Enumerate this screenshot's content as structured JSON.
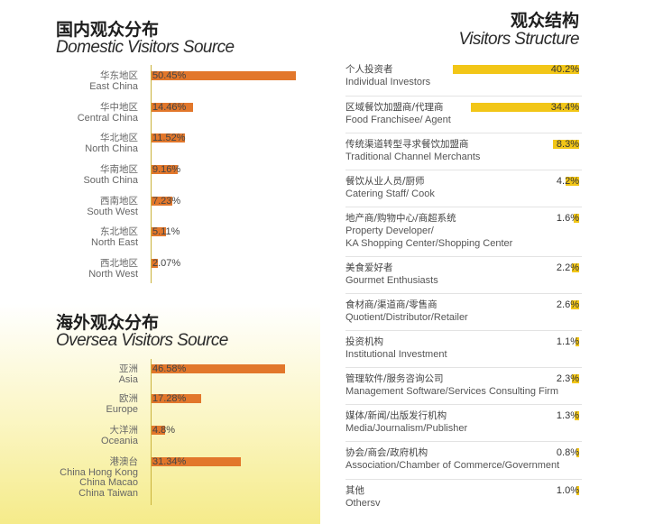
{
  "domestic": {
    "title_cn": "国内观众分布",
    "title_en": "Domestic Visitors Source"
  },
  "oversea": {
    "title_cn": "海外观众分布",
    "title_en": "Oversea Visitors Source"
  },
  "structure": {
    "title_cn": "观众结构",
    "title_en": "Visitors Structure"
  },
  "colors": {
    "orange_bar": "#e2772b",
    "yellow_bar": "#f2c617",
    "panel_gradient": "#f5eb8a"
  },
  "chart_data": [
    {
      "type": "bar",
      "title": "国内观众分布 Domestic Visitors Source",
      "orientation": "horizontal",
      "unit": "%",
      "categories": [
        {
          "cn": "华东地区",
          "en": "East China"
        },
        {
          "cn": "华中地区",
          "en": "Central China"
        },
        {
          "cn": "华北地区",
          "en": "North China"
        },
        {
          "cn": "华南地区",
          "en": "South China"
        },
        {
          "cn": "西南地区",
          "en": "South West"
        },
        {
          "cn": "东北地区",
          "en": "North East"
        },
        {
          "cn": "西北地区",
          "en": "North West"
        }
      ],
      "values": [
        50.45,
        14.46,
        11.52,
        9.16,
        7.23,
        5.11,
        2.07
      ],
      "labels": [
        "50.45%",
        "14.46%",
        "11.52%",
        "9.16%",
        "7.23%",
        "5.11%",
        "2.07%"
      ],
      "xlim": [
        0,
        50.45
      ]
    },
    {
      "type": "bar",
      "title": "海外观众分布 Oversea Visitors Source",
      "orientation": "horizontal",
      "unit": "%",
      "categories": [
        {
          "cn": "亚洲",
          "en": "Asia"
        },
        {
          "cn": "欧洲",
          "en": "Europe"
        },
        {
          "cn": "大洋洲",
          "en": "Oceania"
        },
        {
          "cn": "港澳台",
          "en": "China Hong Kong\nChina Macao\nChina Taiwan"
        }
      ],
      "values": [
        46.58,
        17.28,
        4.8,
        31.34
      ],
      "labels": [
        "46.58%",
        "17.28%",
        "4.8%",
        "31.34%"
      ],
      "xlim": [
        0,
        50.45
      ]
    },
    {
      "type": "bar",
      "title": "观众结构 Visitors Structure",
      "orientation": "horizontal",
      "unit": "%",
      "categories": [
        {
          "cn": "个人投资者",
          "en": "Individual Investors"
        },
        {
          "cn": "区域餐饮加盟商/代理商",
          "en": "Food Franchisee/ Agent"
        },
        {
          "cn": "传统渠道转型寻求餐饮加盟商",
          "en": "Traditional Channel Merchants"
        },
        {
          "cn": "餐饮从业人员/厨师",
          "en": "Catering Staff/ Cook"
        },
        {
          "cn": "地产商/购物中心/商超系统",
          "en": "Property Developer/\nKA Shopping Center/Shopping Center"
        },
        {
          "cn": "美食爱好者",
          "en": "Gourmet Enthusiasts"
        },
        {
          "cn": "食材商/渠道商/零售商",
          "en": "Quotient/Distributor/Retailer"
        },
        {
          "cn": "投资机构",
          "en": "Institutional Investment"
        },
        {
          "cn": "管理软件/服务咨询公司",
          "en": "Management Software/Services Consulting Firm"
        },
        {
          "cn": "媒体/新闻/出版发行机构",
          "en": "Media/Journalism/Publisher"
        },
        {
          "cn": "协会/商会/政府机构",
          "en": "Association/Chamber of Commerce/Government"
        },
        {
          "cn": "其他",
          "en": "Othersv"
        }
      ],
      "values": [
        40.2,
        34.4,
        8.3,
        4.2,
        1.6,
        2.2,
        2.6,
        1.1,
        2.3,
        1.3,
        0.8,
        1.0
      ],
      "labels": [
        "40.2%",
        "34.4%",
        "8.3%",
        "4.2%",
        "1.6%",
        "2.2%",
        "2.6%",
        "1.1%",
        "2.3%",
        "1.3%",
        "0.8%",
        "1.0%"
      ],
      "xlim": [
        0,
        40.2
      ]
    }
  ]
}
